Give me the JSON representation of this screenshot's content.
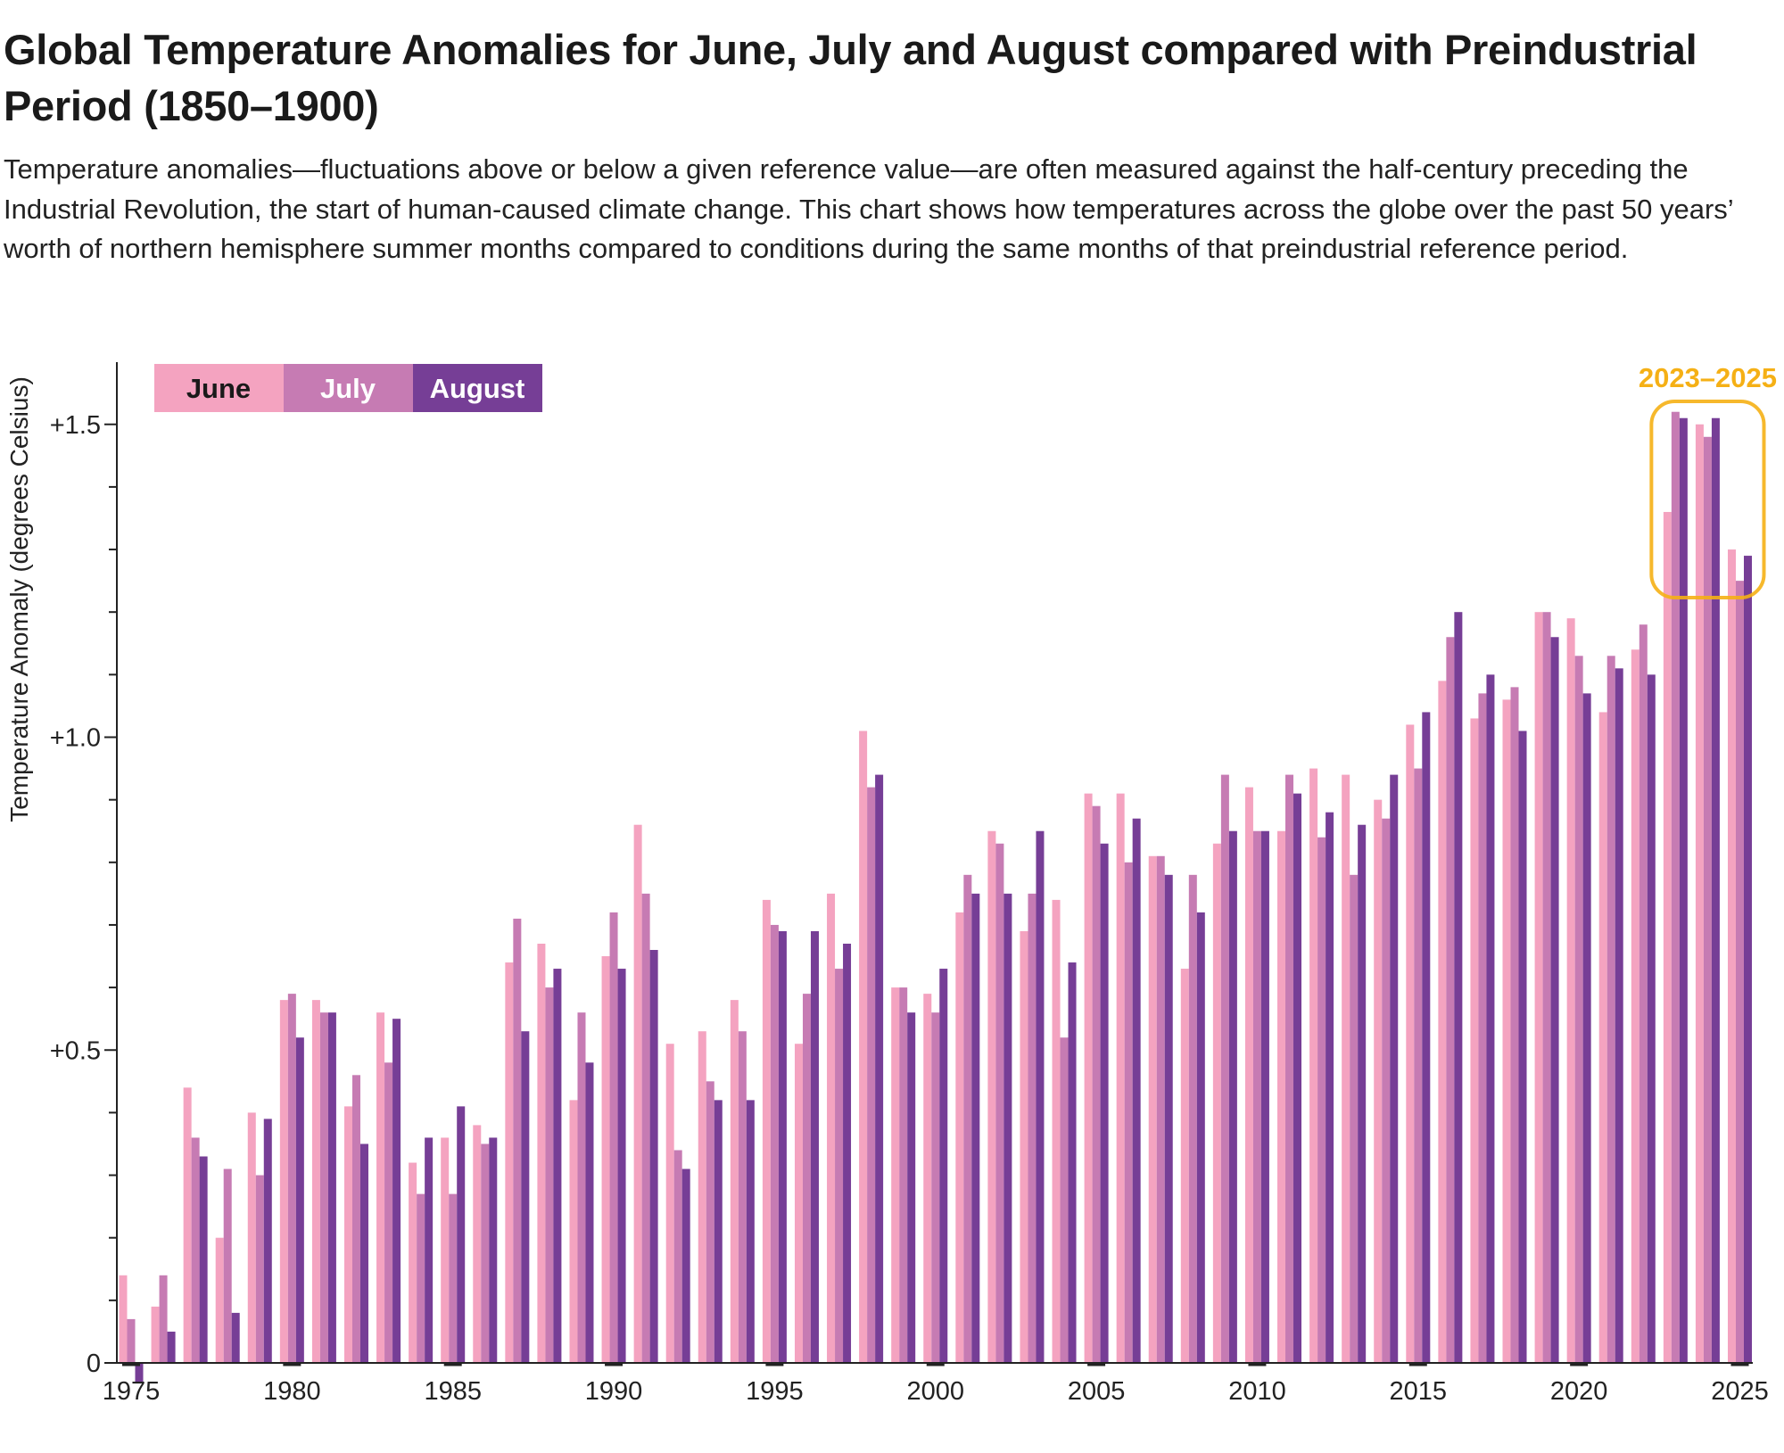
{
  "title": "Global Temperature Anomalies for June, July and August compared with Preindustrial Period (1850–1900)",
  "subtitle": "Temperature anomalies—fluctuations above or below a given reference value—are often measured against the half-century preceding the Industrial Revolution, the start of human-caused climate change. This chart shows how temperatures across the globe over the past 50 years’ worth of northern hemisphere summer months compared to conditions during the same months of that preindustrial reference period.",
  "chart_data": {
    "type": "bar",
    "ylabel": "Temperature Anomaly (degrees Celsius)",
    "xlabel": "",
    "ylim": [
      -0.04,
      1.6
    ],
    "yticks": [
      0,
      0.5,
      1.0,
      1.5
    ],
    "ytick_labels": [
      "0",
      "+0.5",
      "+1.0",
      "+1.5"
    ],
    "xtick_labels": [
      "1975",
      "1980",
      "1985",
      "1990",
      "1995",
      "2000",
      "2005",
      "2010",
      "2015",
      "2020",
      "2025"
    ],
    "legend_placement": "top-left",
    "categories": [
      1975,
      1976,
      1977,
      1978,
      1979,
      1980,
      1981,
      1982,
      1983,
      1984,
      1985,
      1986,
      1987,
      1988,
      1989,
      1990,
      1991,
      1992,
      1993,
      1994,
      1995,
      1996,
      1997,
      1998,
      1999,
      2000,
      2001,
      2002,
      2003,
      2004,
      2005,
      2006,
      2007,
      2008,
      2009,
      2010,
      2011,
      2012,
      2013,
      2014,
      2015,
      2016,
      2017,
      2018,
      2019,
      2020,
      2021,
      2022,
      2023,
      2024,
      2025
    ],
    "series": [
      {
        "name": "June",
        "color": "#F4A3C0",
        "label_color": "#1a1a1a",
        "values": [
          0.14,
          0.09,
          0.44,
          0.2,
          0.4,
          0.58,
          0.58,
          0.41,
          0.56,
          0.32,
          0.36,
          0.38,
          0.64,
          0.67,
          0.42,
          0.65,
          0.86,
          0.51,
          0.53,
          0.58,
          0.74,
          0.51,
          0.75,
          1.01,
          0.6,
          0.59,
          0.72,
          0.85,
          0.69,
          0.74,
          0.91,
          0.91,
          0.81,
          0.63,
          0.83,
          0.92,
          0.85,
          0.95,
          0.94,
          0.9,
          1.02,
          1.09,
          1.03,
          1.06,
          1.2,
          1.19,
          1.04,
          1.14,
          1.36,
          1.5,
          1.3
        ]
      },
      {
        "name": "July",
        "color": "#C67BB3",
        "label_color": "#ffffff",
        "values": [
          0.07,
          0.14,
          0.36,
          0.31,
          0.3,
          0.59,
          0.56,
          0.46,
          0.48,
          0.27,
          0.27,
          0.35,
          0.71,
          0.6,
          0.56,
          0.72,
          0.75,
          0.34,
          0.45,
          0.53,
          0.7,
          0.59,
          0.63,
          0.92,
          0.6,
          0.56,
          0.78,
          0.83,
          0.75,
          0.52,
          0.89,
          0.8,
          0.81,
          0.78,
          0.94,
          0.85,
          0.94,
          0.84,
          0.78,
          0.87,
          0.95,
          1.16,
          1.07,
          1.08,
          1.2,
          1.13,
          1.13,
          1.18,
          1.52,
          1.48,
          1.25
        ]
      },
      {
        "name": "August",
        "color": "#763E96",
        "label_color": "#ffffff",
        "values": [
          -0.03,
          0.05,
          0.33,
          0.08,
          0.39,
          0.52,
          0.56,
          0.35,
          0.55,
          0.36,
          0.41,
          0.36,
          0.53,
          0.63,
          0.48,
          0.63,
          0.66,
          0.31,
          0.42,
          0.42,
          0.69,
          0.69,
          0.67,
          0.94,
          0.56,
          0.63,
          0.75,
          0.75,
          0.85,
          0.64,
          0.83,
          0.87,
          0.78,
          0.72,
          0.85,
          0.85,
          0.91,
          0.88,
          0.86,
          0.94,
          1.04,
          1.2,
          1.1,
          1.01,
          1.16,
          1.07,
          1.11,
          1.1,
          1.51,
          1.51,
          1.29
        ]
      }
    ],
    "annotation": {
      "label": "2023–2025",
      "years": [
        2023,
        2025
      ],
      "color": "#F5B015"
    }
  }
}
